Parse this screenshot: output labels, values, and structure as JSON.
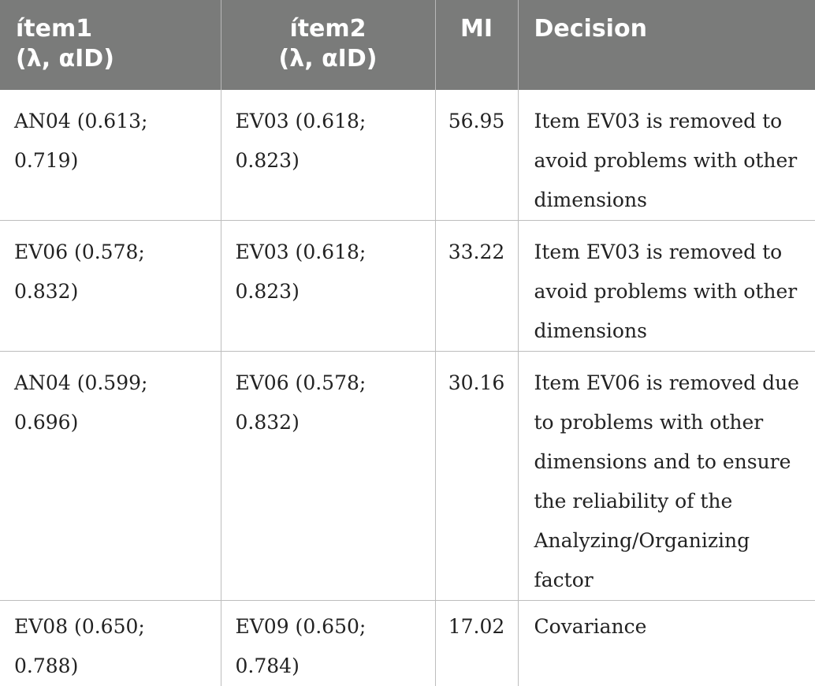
{
  "table": {
    "headers": [
      "ítem1\n(λ, αID)",
      "ítem2\n(λ, αID)",
      "MI",
      "Decision"
    ],
    "header_lines": {
      "item1_line1": "ítem1",
      "item1_line2": "(λ, αID)",
      "item2_line1": "ítem2",
      "item2_line2": "(λ, αID)",
      "mi": "MI",
      "decision": "Decision"
    },
    "rows": [
      {
        "item1": "AN04 (0.613; 0.719)",
        "item2": "EV03 (0.618; 0.823)",
        "mi": "56.95",
        "decision": "Item EV03 is removed to avoid problems with other dimensions"
      },
      {
        "item1": "EV06 (0.578; 0.832)",
        "item2": "EV03 (0.618; 0.823)",
        "mi": "33.22",
        "decision": "Item EV03 is removed to avoid problems with other dimensions"
      },
      {
        "item1": "AN04 (0.599; 0.696)",
        "item2": "EV06 (0.578; 0.832)",
        "mi": "30.16",
        "decision": "Item EV06 is removed due to problems with other dimensions and to ensure the reliability of the Analyzing/Organizing factor"
      },
      {
        "item1": "EV08 (0.650; 0.788)",
        "item2": "EV09 (0.650; 0.784)",
        "mi": "17.02",
        "decision": "Covariance"
      }
    ],
    "colors": {
      "header_bg": "#7a7b7a",
      "header_text": "#ffffff",
      "grid": "#bdbdbd",
      "body_text": "#222222"
    }
  }
}
